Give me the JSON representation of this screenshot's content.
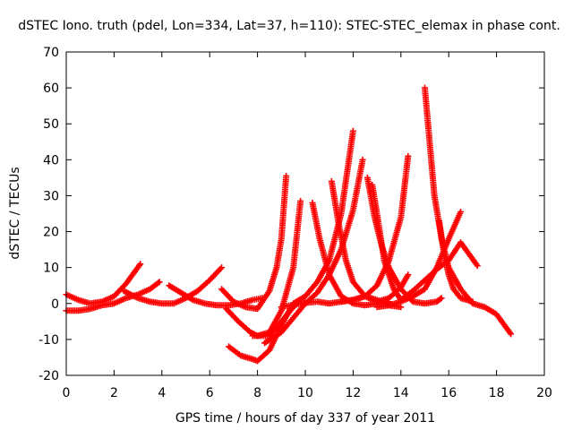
{
  "chart_data": {
    "type": "scatter",
    "title": "dSTEC Iono. truth (pdel, Lon=334, Lat=37, h=110): STEC-STEC_elemax in phase cont.",
    "xlabel": "GPS time / hours of day 337 of year 2011",
    "ylabel": "dSTEC  / TECUs",
    "xlim": [
      0,
      20
    ],
    "ylim": [
      -20,
      70
    ],
    "x_ticks": [
      "0",
      "2",
      "4",
      "6",
      "8",
      "10",
      "12",
      "14",
      "16",
      "18",
      "20"
    ],
    "y_ticks": [
      "-20",
      "-10",
      "0",
      "10",
      "20",
      "30",
      "40",
      "50",
      "60",
      "70"
    ],
    "grid": false,
    "legend": "none",
    "marker": "plus",
    "color": "#ff0000",
    "series": [
      {
        "x": [
          0.0,
          0.5,
          1.0,
          1.5,
          2.0,
          2.5,
          3.1
        ],
        "y": [
          2.5,
          1.0,
          0.0,
          0.5,
          2.0,
          5.5,
          11.0
        ]
      },
      {
        "x": [
          0.0,
          0.5,
          1.0,
          1.5,
          2.0,
          2.5,
          3.0,
          3.5,
          3.9
        ],
        "y": [
          -2.0,
          -2.0,
          -1.5,
          -0.5,
          0.0,
          1.5,
          2.5,
          4.0,
          6.0
        ]
      },
      {
        "x": [
          2.4,
          3.0,
          3.5,
          4.0,
          4.5,
          5.0,
          5.5,
          6.0,
          6.5
        ],
        "y": [
          3.5,
          1.5,
          0.5,
          0.0,
          0.0,
          1.5,
          3.5,
          6.5,
          10.0
        ]
      },
      {
        "x": [
          4.3,
          4.8,
          5.3,
          5.8,
          6.3,
          6.8,
          7.3,
          7.8,
          8.2
        ],
        "y": [
          5.0,
          3.0,
          1.0,
          0.0,
          -0.5,
          -0.5,
          0.0,
          1.0,
          1.5
        ]
      },
      {
        "x": [
          6.5,
          7.0,
          7.5,
          8.0,
          8.5,
          8.8,
          9.0,
          9.2
        ],
        "y": [
          4.0,
          0.5,
          -1.0,
          -1.5,
          3.5,
          10.0,
          18.0,
          35.5
        ]
      },
      {
        "x": [
          6.7,
          7.2,
          7.7,
          8.0,
          8.5,
          9.0,
          9.5,
          9.8
        ],
        "y": [
          -1.5,
          -5.0,
          -8.0,
          -9.0,
          -8.0,
          -2.0,
          10.0,
          28.5
        ]
      },
      {
        "x": [
          6.8,
          7.3,
          7.8,
          8.0,
          8.5,
          9.0,
          9.5,
          10.0
        ],
        "y": [
          -12.0,
          -14.5,
          -15.5,
          -16.0,
          -13.0,
          -6.0,
          0.0,
          2.0
        ]
      },
      {
        "x": [
          7.8,
          8.5,
          9.0,
          9.5,
          10.0,
          10.5,
          11.0,
          11.5,
          12.0
        ],
        "y": [
          -9.0,
          -9.0,
          -5.0,
          -1.0,
          2.0,
          6.0,
          12.0,
          25.0,
          48.0
        ]
      },
      {
        "x": [
          8.3,
          9.0,
          9.5,
          10.0,
          10.5,
          11.0,
          11.5,
          12.0,
          12.4
        ],
        "y": [
          -11.0,
          -8.0,
          -4.0,
          0.0,
          3.0,
          8.0,
          15.0,
          26.0,
          40.0
        ]
      },
      {
        "x": [
          9.0,
          9.8,
          10.5,
          11.0,
          11.5,
          12.0,
          12.5,
          13.0,
          13.5,
          14.0,
          14.3
        ],
        "y": [
          -1.0,
          0.0,
          0.5,
          0.0,
          0.5,
          1.0,
          2.0,
          5.0,
          12.0,
          24.0,
          41.0
        ]
      },
      {
        "x": [
          10.3,
          10.6,
          11.0,
          11.5,
          12.0,
          12.5,
          13.0,
          13.5
        ],
        "y": [
          28.0,
          18.0,
          8.0,
          2.0,
          0.0,
          -0.5,
          0.0,
          0.5
        ]
      },
      {
        "x": [
          11.1,
          11.4,
          11.7,
          12.0,
          12.5,
          13.0,
          13.5,
          14.0,
          14.3
        ],
        "y": [
          34.0,
          22.0,
          12.0,
          6.0,
          2.0,
          0.5,
          1.5,
          4.5,
          8.0
        ]
      },
      {
        "x": [
          12.6,
          12.9,
          13.2,
          13.5,
          14.0,
          14.5,
          15.0,
          15.5,
          15.7
        ],
        "y": [
          35.0,
          24.0,
          16.0,
          10.0,
          4.0,
          0.5,
          0.0,
          0.5,
          1.5
        ]
      },
      {
        "x": [
          12.8,
          13.0,
          13.3,
          13.7,
          14.0,
          14.5,
          15.0,
          15.5,
          16.0,
          16.5,
          17.2
        ],
        "y": [
          33.0,
          25.0,
          12.0,
          4.0,
          1.0,
          3.5,
          6.5,
          9.5,
          12.0,
          17.0,
          10.5
        ]
      },
      {
        "x": [
          15.0,
          15.2,
          15.4,
          15.7,
          16.0,
          16.5,
          17.0,
          17.5,
          18.0,
          18.6
        ],
        "y": [
          60.0,
          45.0,
          30.0,
          18.0,
          10.0,
          4.0,
          0.0,
          -1.0,
          -3.0,
          -8.5
        ]
      },
      {
        "x": [
          13.0,
          13.5,
          14.0,
          14.5,
          15.0,
          15.5,
          16.0,
          16.5
        ],
        "y": [
          -1.0,
          -0.5,
          0.5,
          2.0,
          4.0,
          10.0,
          18.0,
          25.5
        ]
      },
      {
        "x": [
          15.6,
          15.8,
          16.0,
          16.2,
          16.5,
          17.0
        ],
        "y": [
          23.0,
          14.0,
          8.0,
          4.0,
          1.5,
          0.5
        ]
      },
      {
        "x": [
          11.5,
          12.0,
          12.5,
          13.0,
          13.5,
          14.0
        ],
        "y": [
          0.5,
          1.0,
          2.0,
          1.0,
          -0.5,
          -1.0
        ]
      }
    ]
  }
}
